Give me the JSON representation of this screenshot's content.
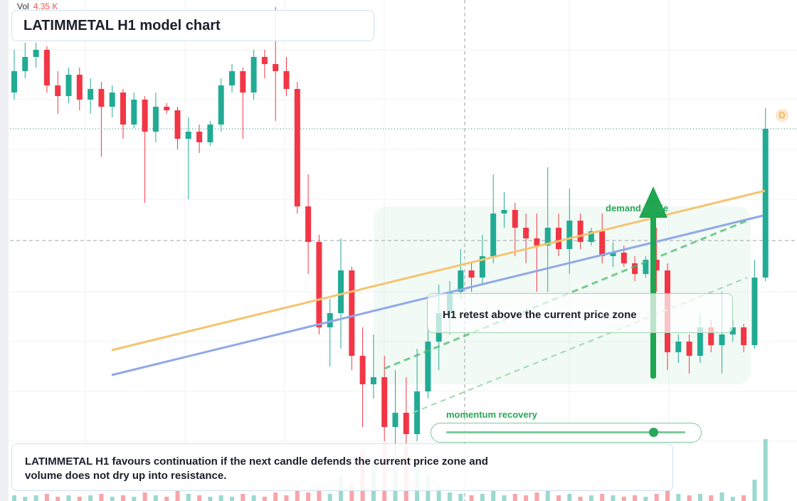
{
  "chart_data": {
    "type": "candlestick",
    "title": "LATIMMETAL H1 model chart",
    "volume_title": "Vol",
    "last_volume": 4.35,
    "last_volume_label": "4.35 K",
    "up_color": "#22ab94",
    "down_color": "#f23645",
    "ylim": [
      29.6,
      100
    ],
    "candles": [
      [
        87,
        93,
        86,
        90
      ],
      [
        90,
        94,
        89,
        92
      ],
      [
        92,
        94,
        90.5,
        93
      ],
      [
        93,
        93.5,
        87,
        88
      ],
      [
        88,
        90,
        84,
        86.5
      ],
      [
        86.5,
        90.5,
        85.5,
        89.5
      ],
      [
        89.5,
        90.5,
        84.5,
        86
      ],
      [
        86,
        89,
        84,
        87.5
      ],
      [
        87.5,
        88.5,
        78,
        85
      ],
      [
        85,
        88,
        83.5,
        87
      ],
      [
        87,
        87.5,
        80.5,
        82.5
      ],
      [
        82.5,
        87,
        82,
        86
      ],
      [
        86,
        86.5,
        71.5,
        81.5
      ],
      [
        81.5,
        87,
        80,
        85
      ],
      [
        85,
        85.5,
        84,
        84.5
      ],
      [
        84.5,
        85,
        79,
        80.5
      ],
      [
        80.5,
        83.5,
        72,
        81.5
      ],
      [
        81.5,
        82.5,
        78.5,
        80
      ],
      [
        80,
        83,
        79.5,
        82.5
      ],
      [
        82.5,
        89,
        81.5,
        88
      ],
      [
        88,
        91,
        87,
        90
      ],
      [
        90,
        90.5,
        80.5,
        87
      ],
      [
        87,
        93,
        86,
        92
      ],
      [
        92,
        93,
        89,
        91
      ],
      [
        91,
        99,
        83,
        90
      ],
      [
        90,
        92,
        86.5,
        87.5
      ],
      [
        87.5,
        88.5,
        70,
        71
      ],
      [
        71,
        75.5,
        61.5,
        66
      ],
      [
        66,
        67,
        53,
        54
      ],
      [
        54,
        58,
        48.5,
        56
      ],
      [
        56,
        66.5,
        51,
        62
      ],
      [
        62,
        62.5,
        48,
        50
      ],
      [
        50,
        54,
        40,
        46
      ],
      [
        46,
        53,
        44,
        47
      ],
      [
        47,
        50,
        38,
        40
      ],
      [
        40,
        48,
        36,
        42
      ],
      [
        42,
        47,
        36,
        39
      ],
      [
        39,
        51,
        38,
        45
      ],
      [
        45,
        54,
        44,
        52
      ],
      [
        52,
        60,
        48,
        56
      ],
      [
        56,
        60.5,
        53,
        59
      ],
      [
        59,
        65,
        58,
        62
      ],
      [
        62,
        63,
        59,
        61
      ],
      [
        61,
        67,
        60,
        64
      ],
      [
        64,
        75.5,
        63,
        70
      ],
      [
        70,
        73,
        68,
        70.5
      ],
      [
        70.5,
        71.5,
        64,
        68
      ],
      [
        68,
        70,
        63,
        66.5
      ],
      [
        66.5,
        70,
        59,
        65.5
      ],
      [
        65.5,
        76.5,
        59,
        68
      ],
      [
        68,
        70,
        64,
        65
      ],
      [
        65,
        73.5,
        61.5,
        69
      ],
      [
        69,
        70,
        65,
        66
      ],
      [
        66,
        68,
        65.5,
        67.5
      ],
      [
        67.5,
        70,
        63,
        64
      ],
      [
        64,
        66,
        62.5,
        64.5
      ],
      [
        64.5,
        65.5,
        62.5,
        63
      ],
      [
        63,
        64,
        60.5,
        61.5
      ],
      [
        61.5,
        64,
        61,
        63.5
      ],
      [
        63.5,
        68,
        59,
        62
      ],
      [
        62,
        63,
        48,
        50.5
      ],
      [
        50.5,
        53,
        49,
        52
      ],
      [
        52,
        53,
        47.5,
        50
      ],
      [
        50,
        56,
        49,
        54
      ],
      [
        54,
        55,
        50.5,
        51.5
      ],
      [
        51.5,
        59,
        47.5,
        53
      ],
      [
        53,
        55,
        52,
        54
      ],
      [
        54,
        54.5,
        50.5,
        51.5
      ],
      [
        51.5,
        63.5,
        51,
        61
      ],
      [
        61,
        84.8,
        60.5,
        81.9
      ]
    ],
    "volume": [
      0.4,
      0.3,
      0.4,
      0.5,
      0.3,
      0.4,
      0.3,
      0.4,
      0.5,
      0.3,
      0.4,
      0.3,
      0.6,
      0.4,
      0.3,
      0.7,
      0.5,
      0.4,
      0.3,
      0.4,
      0.3,
      0.5,
      0.4,
      0.3,
      0.6,
      0.4,
      0.8,
      0.6,
      1.0,
      0.5,
      1.8,
      1.2,
      3.5,
      3.0,
      4.0,
      3.2,
      3.8,
      2.6,
      1.9,
      1.0,
      0.6,
      0.5,
      0.4,
      0.5,
      0.7,
      0.4,
      0.5,
      0.4,
      0.6,
      0.7,
      0.4,
      0.5,
      0.3,
      0.4,
      0.5,
      0.4,
      0.3,
      0.4,
      0.3,
      0.5,
      0.8,
      0.5,
      0.4,
      0.5,
      0.4,
      0.6,
      0.3,
      0.4,
      1.5,
      4.35
    ],
    "annotations": {
      "zone_label": "demand guide",
      "retest": "H1 retest above the current price zone",
      "slider_label": "momentum recovery",
      "marker": "D"
    },
    "caption": "LATIMMETAL H1 favours continuation if the next candle defends the current price zone and volume does not dry up into resistance."
  }
}
